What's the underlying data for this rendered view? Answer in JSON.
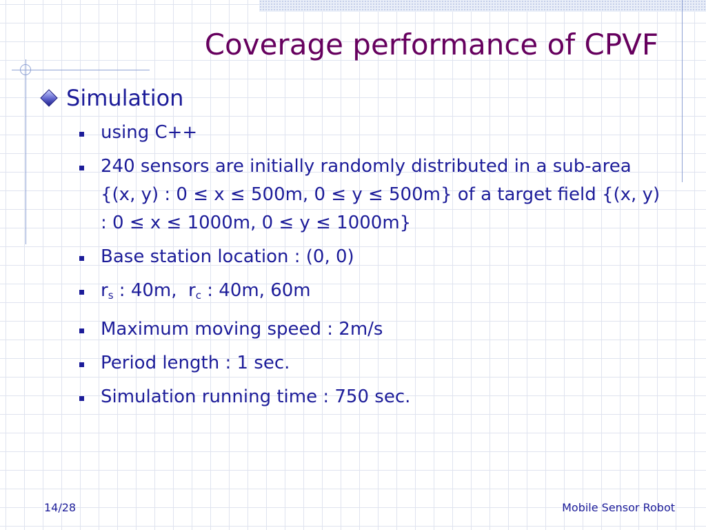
{
  "slide": {
    "title": "Coverage performance of CPVF",
    "level1": "Simulation",
    "items": [
      "using C++",
      "240 sensors are initially randomly distributed in a sub-area {(x, y) : 0 ≤ x ≤ 500m, 0 ≤ y ≤ 500m} of a target field {(x, y) : 0 ≤ x ≤ 1000m, 0 ≤ y ≤ 1000m}",
      "Base station location : (0, 0)",
      "Maximum moving speed : 2m/s",
      "Period length : 1 sec.",
      "Simulation running time : 750 sec."
    ],
    "radius": {
      "r1": "r",
      "s_sub": "s",
      "s_val": " : 40m,  ",
      "r2": "r",
      "c_sub": "c",
      "c_val": " : 40m, 60m"
    }
  },
  "footer": {
    "page": "14/28",
    "topic": "Mobile Sensor Robot"
  },
  "colors": {
    "title": "#66005e",
    "text": "#1c1c99",
    "grid": "#dfe3ef",
    "deco": "#8ea1d4"
  }
}
